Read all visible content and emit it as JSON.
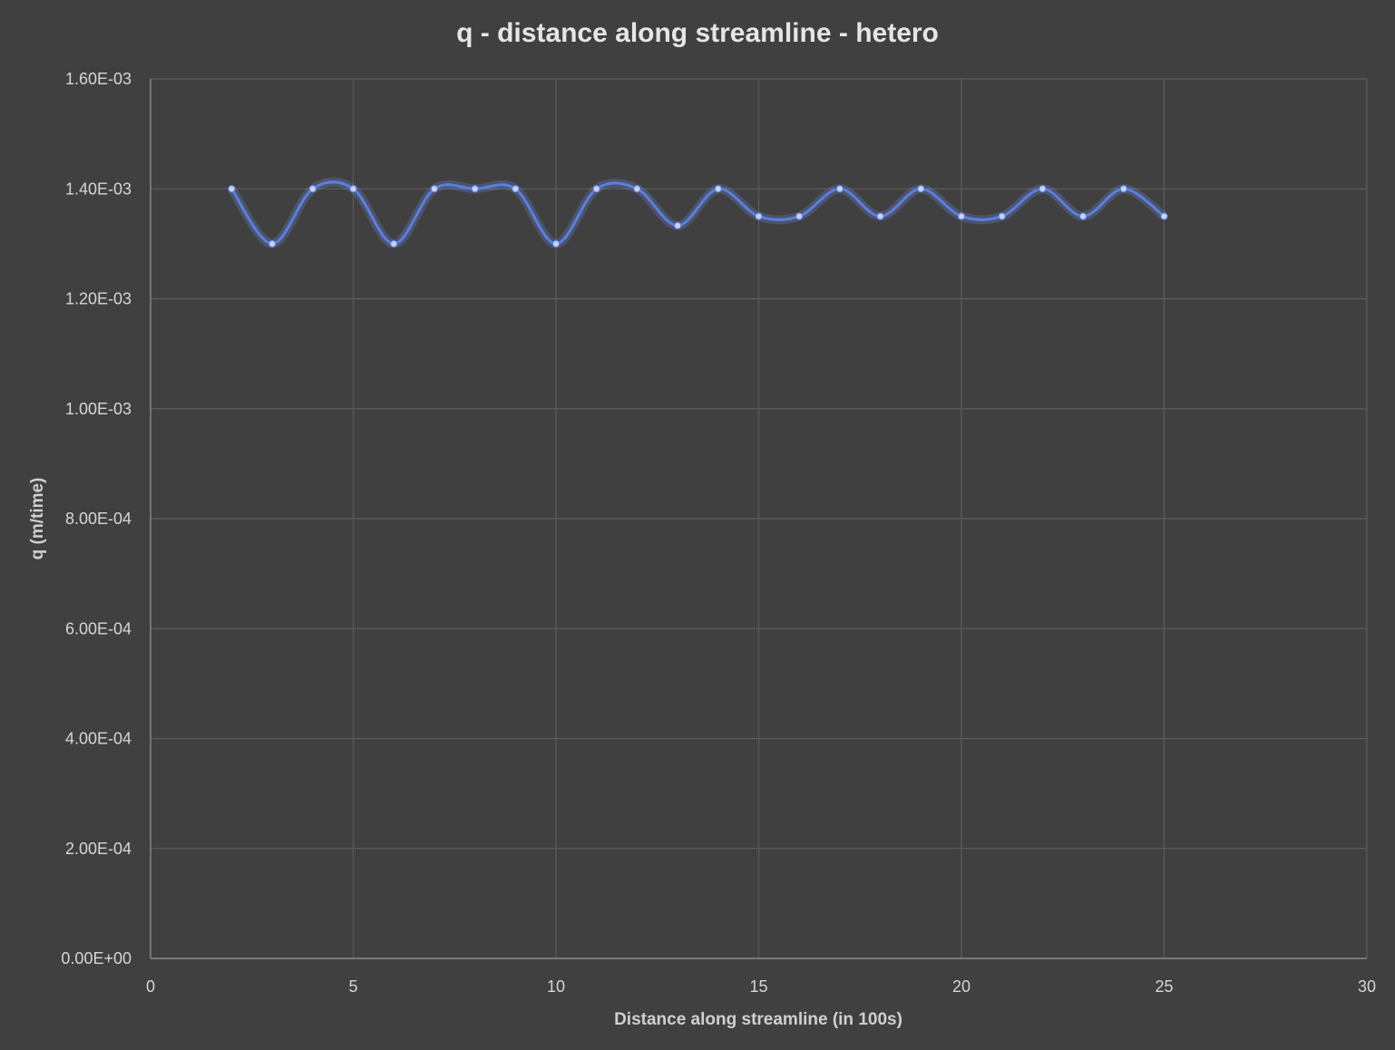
{
  "chart_data": {
    "type": "scatter",
    "title": "q - distance along streamline - hetero",
    "xlabel": "Distance along streamline (in 100s)",
    "ylabel": "q (m/time)",
    "xlim": [
      0,
      30
    ],
    "ylim": [
      0,
      0.0016
    ],
    "x_ticks": [
      "0",
      "5",
      "10",
      "15",
      "20",
      "25",
      "30"
    ],
    "y_ticks": [
      "0.00E+00",
      "2.00E-04",
      "4.00E-04",
      "6.00E-04",
      "8.00E-04",
      "1.00E-03",
      "1.20E-03",
      "1.40E-03",
      "1.60E-03"
    ],
    "grid": true,
    "smooth_line": true,
    "series_color": "#5a7fe0",
    "background_color": "#404040",
    "series": [
      {
        "x": [
          2,
          3,
          4,
          5,
          6,
          7,
          8,
          9,
          10,
          11,
          12,
          13,
          14,
          15,
          16,
          17,
          18,
          19,
          20,
          21,
          22,
          23,
          24,
          25
        ],
        "y": [
          0.0014,
          0.0013,
          0.0014,
          0.0014,
          0.0013,
          0.0014,
          0.0014,
          0.0014,
          0.0013,
          0.0014,
          0.0014,
          0.001333,
          0.0014,
          0.00135,
          0.00135,
          0.0014,
          0.00135,
          0.0014,
          0.00135,
          0.00135,
          0.0014,
          0.00135,
          0.0014,
          0.00135
        ]
      }
    ]
  }
}
